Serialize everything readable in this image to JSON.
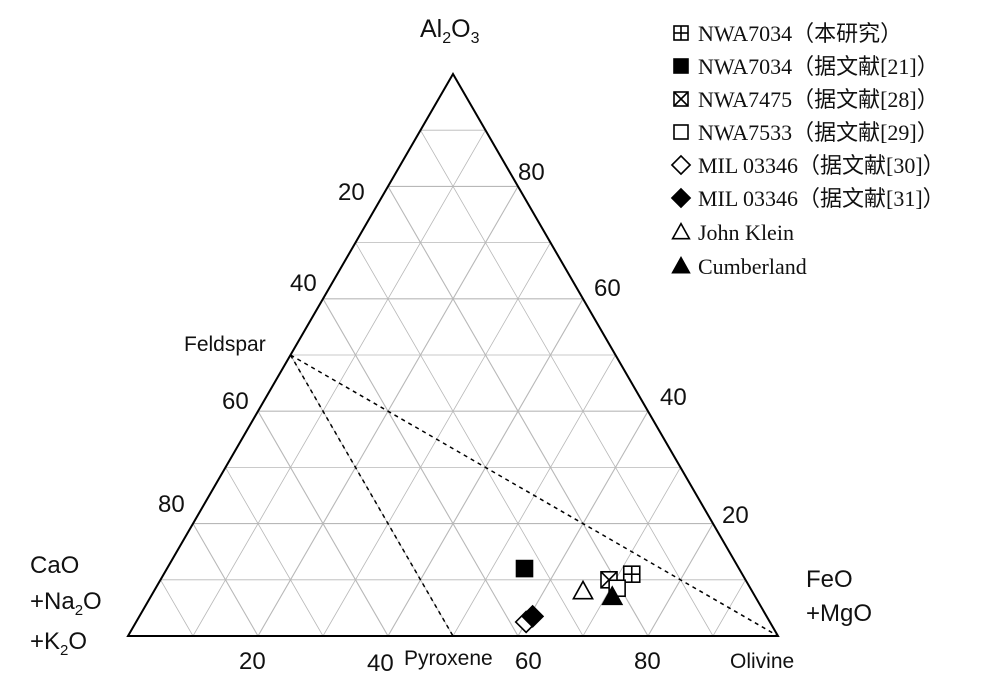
{
  "chart_data": {
    "type": "scatter",
    "subtype": "ternary",
    "apex_labels": {
      "top": {
        "main": "Al",
        "sub1": "2",
        "mid": "O",
        "sub2": "3"
      },
      "left": [
        {
          "main": "CaO"
        },
        {
          "main": "+Na",
          "sub": "2",
          "tail": "O"
        },
        {
          "main": "+K",
          "sub": "2",
          "tail": "O"
        }
      ],
      "right": [
        "FeO",
        "+MgO"
      ]
    },
    "tick_labels": {
      "left_edge": [
        "20",
        "40",
        "60",
        "80"
      ],
      "right_edge": [
        "80",
        "60",
        "40",
        "20"
      ],
      "bottom_edge": [
        "20",
        "40",
        "60",
        "80"
      ]
    },
    "grid": true,
    "reference_points": [
      {
        "label": "Feldspar",
        "al2o3": 50,
        "feo_mgo": 0
      },
      {
        "label": "Pyroxene",
        "al2o3": 0,
        "feo_mgo": 50
      },
      {
        "label": "Olivine",
        "al2o3": 0,
        "feo_mgo": 100
      }
    ],
    "tie_lines": [
      {
        "from": "Feldspar",
        "to": "Pyroxene"
      },
      {
        "from": "Feldspar",
        "to": "Olivine"
      }
    ],
    "series": [
      {
        "name": "NWA7034（本研究）",
        "marker": "square-plus",
        "points": [
          {
            "al2o3": 11,
            "feo_mgo": 72
          }
        ]
      },
      {
        "name": "NWA7034（据文献[21]）",
        "marker": "square-filled",
        "points": [
          {
            "al2o3": 12,
            "feo_mgo": 55
          }
        ]
      },
      {
        "name": "NWA7475（据文献[28]）",
        "marker": "square-x",
        "points": [
          {
            "al2o3": 10,
            "feo_mgo": 69
          }
        ]
      },
      {
        "name": "NWA7533（据文献[29]）",
        "marker": "square-open",
        "points": [
          {
            "al2o3": 8.5,
            "feo_mgo": 71
          }
        ]
      },
      {
        "name": "MIL 03346（据文献[30]）",
        "marker": "diamond-open",
        "points": [
          {
            "al2o3": 2.5,
            "feo_mgo": 60
          }
        ]
      },
      {
        "name": "MIL 03346（据文献[31]）",
        "marker": "diamond-filled",
        "points": [
          {
            "al2o3": 3.5,
            "feo_mgo": 60.5
          }
        ]
      },
      {
        "name": "John Klein",
        "marker": "triangle-open",
        "points": [
          {
            "al2o3": 8,
            "feo_mgo": 66
          }
        ]
      },
      {
        "name": "Cumberland",
        "marker": "triangle-filled",
        "points": [
          {
            "al2o3": 7,
            "feo_mgo": 71
          }
        ]
      }
    ],
    "legend_position": "top-right"
  }
}
